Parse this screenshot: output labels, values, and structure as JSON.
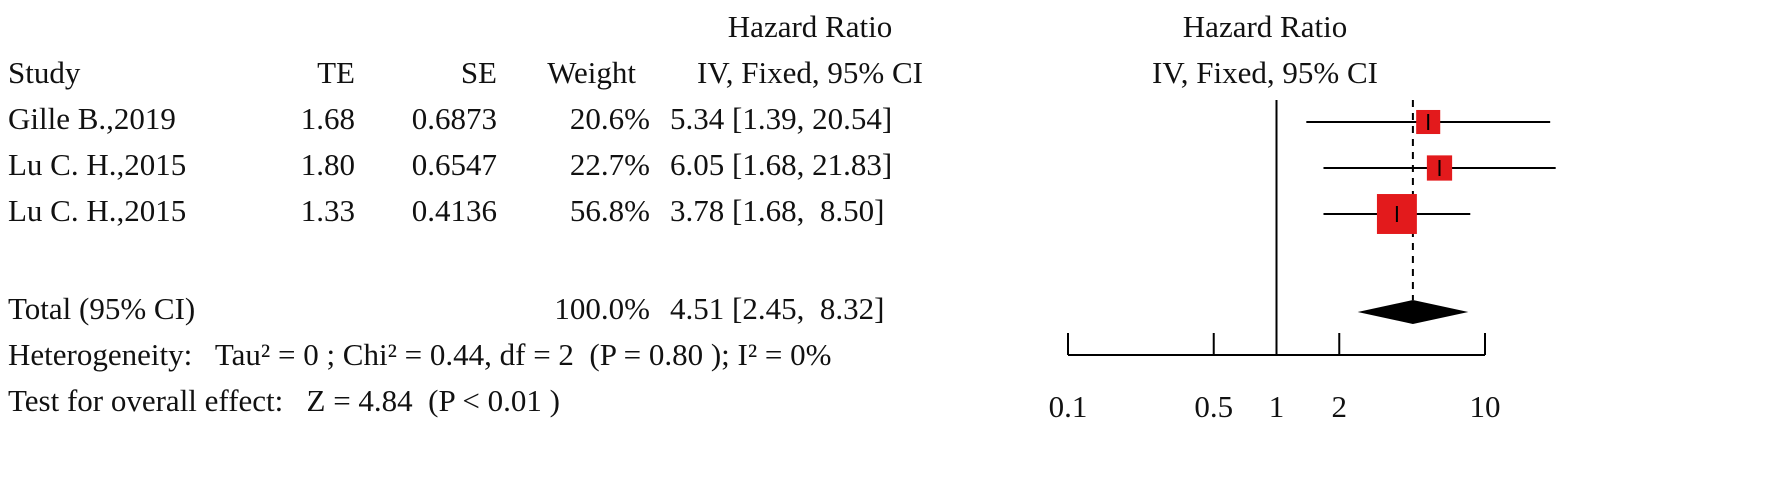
{
  "chart_data": {
    "type": "forest",
    "study_header": "Study",
    "te_header": "TE",
    "se_header": "SE",
    "weight_header": "Weight",
    "hr_header": "Hazard Ratio",
    "hr_subheader": "IV, Fixed, 95% CI",
    "plot_header": "Hazard Ratio",
    "plot_subheader": "IV, Fixed, 95% CI",
    "studies": [
      "Gille B.,2019",
      "Lu C. H.,2015",
      "Lu C. H.,2015"
    ],
    "te": [
      "1.68",
      "1.80",
      "1.33"
    ],
    "se": [
      "0.6873",
      "0.6547",
      "0.4136"
    ],
    "weights": [
      20.6,
      22.7,
      56.8
    ],
    "weight_labels": [
      "20.6%",
      "22.7%",
      "56.8%"
    ],
    "values": [
      5.34,
      6.05,
      3.78
    ],
    "lower": [
      1.39,
      1.68,
      1.68
    ],
    "upper": [
      20.54,
      21.83,
      8.5
    ],
    "value_labels": [
      "5.34 [1.39, 20.54]",
      "6.05 [1.68, 21.83]",
      "3.78 [1.68,  8.50]"
    ],
    "total": {
      "name": "Total (95% CI)",
      "weight": 100.0,
      "weight_label": "100.0%",
      "value": 4.51,
      "lower": 2.45,
      "upper": 8.32,
      "value_label": "4.51 [2.45,  8.32]"
    },
    "heterogeneity": "Heterogeneity:   Tau² = 0 ; Chi² = 0.44, df = 2  (P = 0.80 ); I² = 0%",
    "overall_effect": "Test for overall effect:   Z = 4.84  (P < 0.01 )",
    "xscale": "log",
    "xlim": [
      0.1,
      10
    ],
    "xticks": [
      0.1,
      0.5,
      1,
      2,
      10
    ],
    "reference_line": 1,
    "color": "#e31a1c",
    "diamond_color": "#000000"
  }
}
